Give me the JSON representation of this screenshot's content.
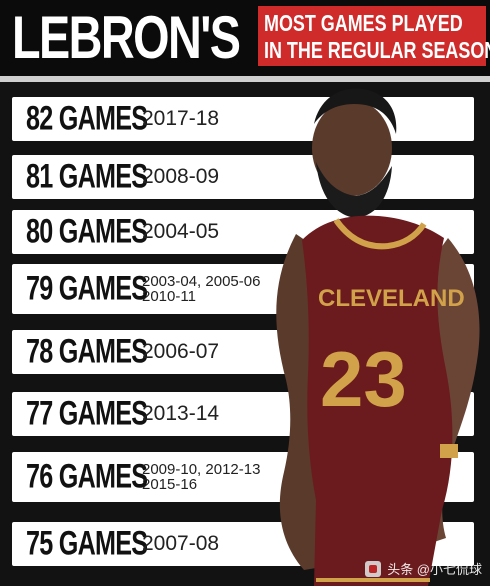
{
  "header": {
    "title": "LEBRON'S",
    "subtitle_line1": "MOST GAMES PLAYED",
    "subtitle_line2": "IN THE REGULAR SEASON"
  },
  "rows": [
    {
      "games": "82 GAMES",
      "seasons": [
        "2017-18"
      ]
    },
    {
      "games": "81 GAMES",
      "seasons": [
        "2008-09"
      ]
    },
    {
      "games": "80 GAMES",
      "seasons": [
        "2004-05"
      ]
    },
    {
      "games": "79 GAMES",
      "seasons": [
        "2003-04, 2005-06",
        "2010-11"
      ]
    },
    {
      "games": "78 GAMES",
      "seasons": [
        "2006-07"
      ]
    },
    {
      "games": "77 GAMES",
      "seasons": [
        "2013-14"
      ]
    },
    {
      "games": "76 GAMES",
      "seasons": [
        "2009-10, 2012-13",
        "2015-16"
      ]
    },
    {
      "games": "75 GAMES",
      "seasons": [
        "2007-08"
      ]
    }
  ],
  "player": {
    "jersey_text": "CLEVELAND",
    "jersey_number": "23"
  },
  "watermark": {
    "text": "头条 @小七侃球"
  },
  "colors": {
    "accent": "#cf2b2b",
    "jersey": "#6b1b1d",
    "jersey_trim": "#d2a24a"
  }
}
